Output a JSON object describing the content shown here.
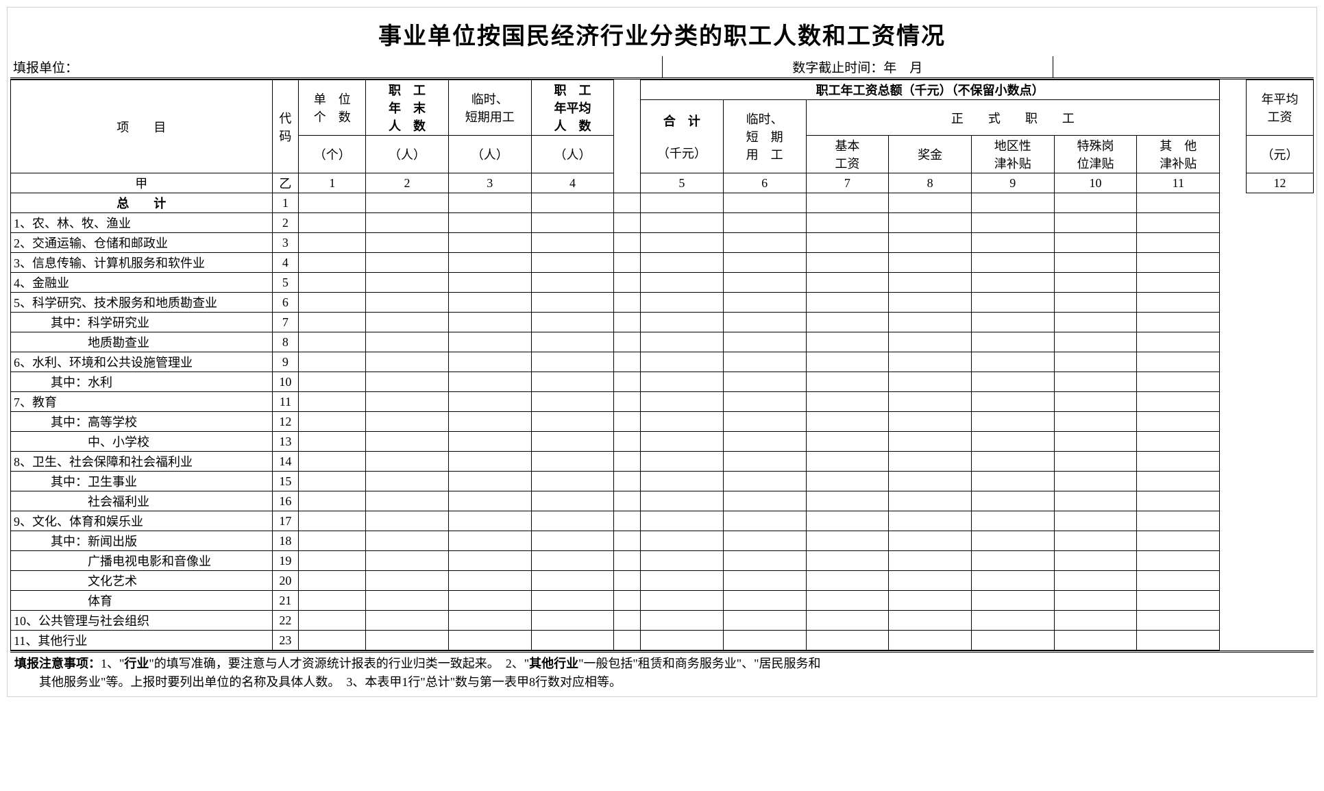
{
  "title": "事业单位按国民经济行业分类的职工人数和工资情况",
  "meta": {
    "unit_label": "填报单位：",
    "cutoff_label": "数字截止时间：年　月"
  },
  "header": {
    "item": "项　　目",
    "code": "代码",
    "unit_count": "单　位",
    "unit_count2": "个　数",
    "unit_unit": "（个）",
    "emp_end": "职　工",
    "emp_end2": "年　末",
    "emp_end3": "人　数",
    "emp_unit": "（人）",
    "temp": "临时、",
    "temp2": "短期用工",
    "avg": "职　工",
    "avg2": "年平均",
    "avg3": "人　数",
    "total_salary": "职工年工资总额（千元）（不保留小数点）",
    "heji": "合　计",
    "heji_unit": "（千元）",
    "temp_short": "临时、",
    "temp_short2": "短　期",
    "temp_short3": "用　工",
    "formal": "正　　式　　职　　工",
    "basic": "基本",
    "basic2": "工资",
    "bonus": "奖金",
    "regional": "地区性",
    "regional2": "津补贴",
    "special": "特殊岗",
    "special2": "位津贴",
    "other_sub": "其　他",
    "other_sub2": "津补贴",
    "avg_salary": "年平均",
    "avg_salary2": "工资",
    "avg_salary_unit": "（元）",
    "jia": "甲",
    "yi": "乙",
    "cols": [
      "1",
      "2",
      "3",
      "4",
      "5",
      "6",
      "7",
      "8",
      "9",
      "10",
      "11",
      "12"
    ]
  },
  "rows": [
    {
      "label": "总　　计",
      "code": "1",
      "bold": true,
      "center": true
    },
    {
      "label": "1、农、林、牧、渔业",
      "code": "2"
    },
    {
      "label": "2、交通运输、仓储和邮政业",
      "code": "3"
    },
    {
      "label": "3、信息传输、计算机服务和软件业",
      "code": "4"
    },
    {
      "label": "4、金融业",
      "code": "5"
    },
    {
      "label": "5、科学研究、技术服务和地质勘查业",
      "code": "6"
    },
    {
      "label": "　　　其中：科学研究业",
      "code": "7"
    },
    {
      "label": "　　　　　　地质勘查业",
      "code": "8"
    },
    {
      "label": "6、水利、环境和公共设施管理业",
      "code": "9"
    },
    {
      "label": "　　　其中：水利",
      "code": "10"
    },
    {
      "label": "7、教育",
      "code": "11"
    },
    {
      "label": "　　　其中：高等学校",
      "code": "12"
    },
    {
      "label": "　　　　　　中、小学校",
      "code": "13"
    },
    {
      "label": "8、卫生、社会保障和社会福利业",
      "code": "14"
    },
    {
      "label": "　　　其中：卫生事业",
      "code": "15"
    },
    {
      "label": "　　　　　　社会福利业",
      "code": "16"
    },
    {
      "label": "9、文化、体育和娱乐业",
      "code": "17"
    },
    {
      "label": "　　　其中：新闻出版",
      "code": "18"
    },
    {
      "label": "　　　　　　广播电视电影和音像业",
      "code": "19"
    },
    {
      "label": "　　　　　　文化艺术",
      "code": "20"
    },
    {
      "label": "　　　　　　体育",
      "code": "21"
    },
    {
      "label": "10、公共管理与社会组织",
      "code": "22"
    },
    {
      "label": "11、其他行业",
      "code": "23"
    }
  ],
  "footer": {
    "prefix": "填报注意事项：",
    "n1a": "1、\"",
    "n1b": "行业",
    "n1c": "\"的填写准确，要注意与人才资源统计报表的行业归类一致起来。　",
    "n2a": "2、\"",
    "n2b": "其他行业",
    "n2c": "\"一般包括\"租赁和商务服务业\"、\"居民服务和",
    "n2d": "　　其他服务业\"等。上报时要列出单位的名称及具体人数。　",
    "n3": "3、本表甲1行\"总计\"数与第一表甲8行数对应相等。"
  }
}
